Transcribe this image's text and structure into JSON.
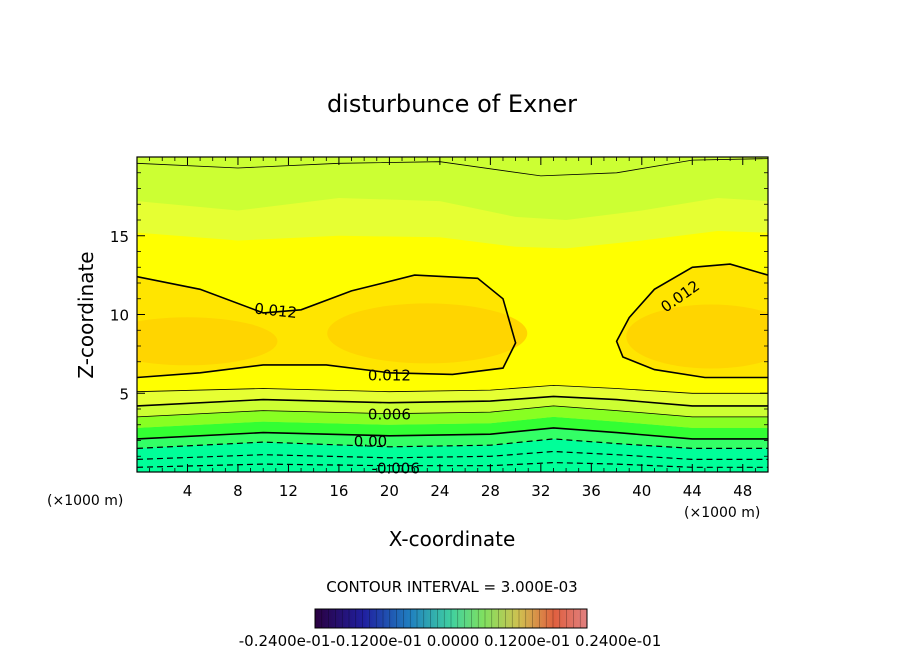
{
  "chart_data": {
    "type": "contour",
    "title": "disturbunce of Exner",
    "xlabel": "X-coordinate",
    "ylabel": "Z-coordinate",
    "x_unit": "(×1000 m)",
    "x_unit_right": "(×1000 m)",
    "xlim": [
      0,
      50
    ],
    "ylim": [
      0,
      20
    ],
    "x_ticks": [
      "4",
      "8",
      "12",
      "16",
      "20",
      "24",
      "28",
      "32",
      "36",
      "40",
      "44",
      "48"
    ],
    "y_ticks": [
      "5",
      "10",
      "15"
    ],
    "contour_interval_text": "CONTOUR INTERVAL = 3.000E-03",
    "contour_labels": [
      "0.012",
      "0.012",
      "0.012",
      "0.006",
      "0.00",
      "-0.006"
    ],
    "colorbar_label_text": "-0.2400e-01-0.1200e-01 0.0000 0.1200e-01 0.2400e-01",
    "levels": [
      -0.006,
      -0.003,
      0.0,
      0.003,
      0.006,
      0.009,
      0.012,
      0.015
    ],
    "colors": {
      "fill_lowest": "#00ff99",
      "fill_low": "#33ff66",
      "fill_zero": "#33ff33",
      "fill_mid_green": "#88ff22",
      "fill_yellow_green": "#ccff33",
      "fill_pale_yellow": "#e6ff33",
      "fill_yellow": "#ffff00",
      "fill_gold": "#ffe500",
      "fill_core": "#ffd500"
    }
  }
}
